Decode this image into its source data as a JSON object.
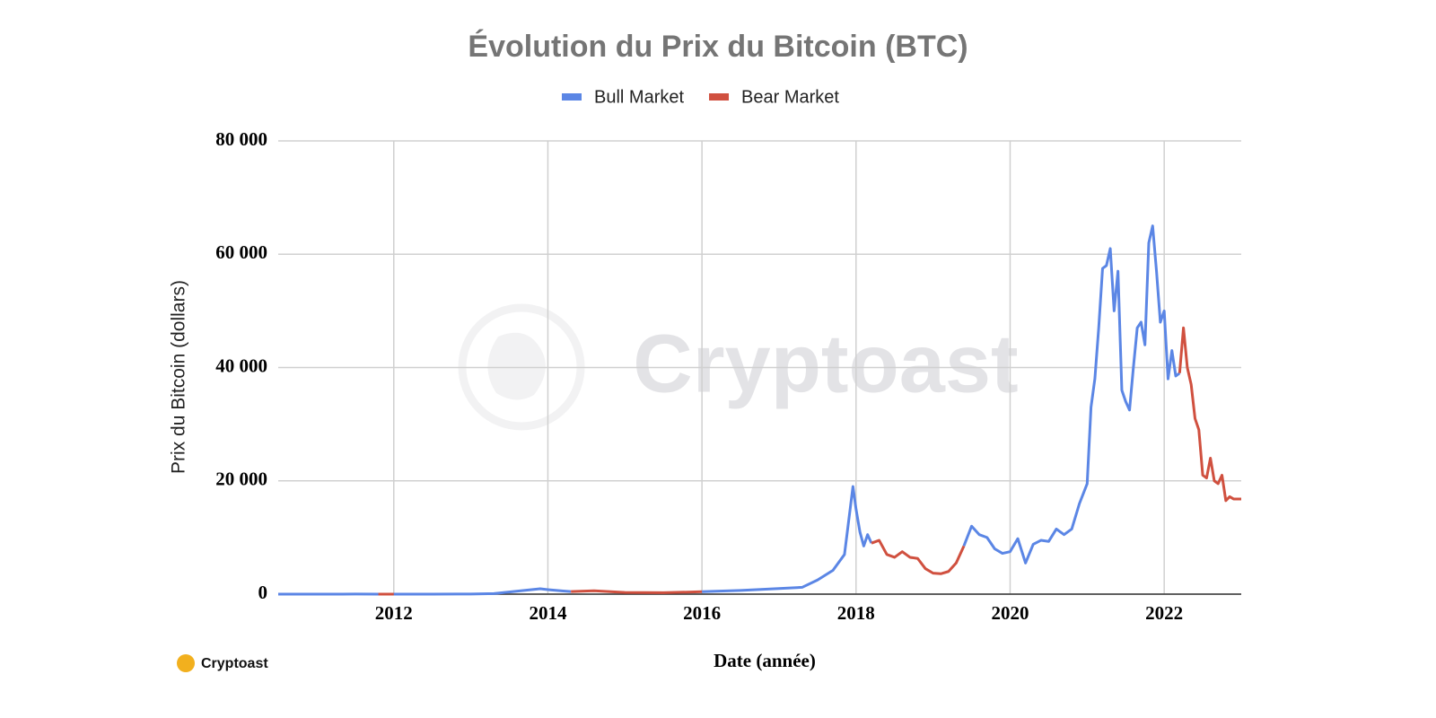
{
  "chart_data": {
    "type": "line",
    "title": "Évolution du Prix du Bitcoin (BTC)",
    "x_label": "Date (année)",
    "y_label": "Prix du Bitcoin (dollars)",
    "watermark": "Cryptoast",
    "source": "Cryptoast",
    "legend": "top",
    "grid": true,
    "xlim": [
      2010.5,
      2023
    ],
    "ylim": [
      0,
      80000
    ],
    "xticks": [
      2012,
      2014,
      2016,
      2018,
      2020,
      2022
    ],
    "yticks": [
      {
        "value": 0,
        "label": "0"
      },
      {
        "value": 20000,
        "label": "20 000"
      },
      {
        "value": 40000,
        "label": "40 000"
      },
      {
        "value": 60000,
        "label": "60 000"
      },
      {
        "value": 80000,
        "label": "80 000"
      }
    ],
    "x": [
      2010.5,
      2011.0,
      2011.5,
      2011.8,
      2012.0,
      2012.5,
      2013.0,
      2013.3,
      2013.9,
      2014.0,
      2014.2,
      2014.3,
      2014.6,
      2015.0,
      2015.5,
      2016.0,
      2016.5,
      2017.0,
      2017.3,
      2017.5,
      2017.7,
      2017.85,
      2017.96,
      2018.0,
      2018.05,
      2018.1,
      2018.15,
      2018.2,
      2018.3,
      2018.4,
      2018.5,
      2018.6,
      2018.7,
      2018.8,
      2018.9,
      2019.0,
      2019.1,
      2019.2,
      2019.3,
      2019.4,
      2019.5,
      2019.6,
      2019.7,
      2019.8,
      2019.9,
      2020.0,
      2020.1,
      2020.2,
      2020.3,
      2020.4,
      2020.5,
      2020.6,
      2020.7,
      2020.8,
      2020.9,
      2021.0,
      2021.05,
      2021.1,
      2021.15,
      2021.2,
      2021.25,
      2021.3,
      2021.35,
      2021.4,
      2021.45,
      2021.5,
      2021.55,
      2021.6,
      2021.65,
      2021.7,
      2021.75,
      2021.8,
      2021.85,
      2021.9,
      2021.95,
      2022.0,
      2022.05,
      2022.1,
      2022.15,
      2022.2,
      2022.25,
      2022.3,
      2022.35,
      2022.4,
      2022.45,
      2022.5,
      2022.55,
      2022.6,
      2022.65,
      2022.7,
      2022.75,
      2022.8,
      2022.85,
      2022.9,
      2023.0
    ],
    "series": [
      {
        "name": "Bull Market",
        "color": "#5b86e5",
        "values": [
          0.1,
          0.3,
          15,
          4,
          5,
          7,
          13,
          100,
          950,
          800,
          550,
          450,
          null,
          null,
          null,
          430,
          650,
          1000,
          1200,
          2500,
          4200,
          7000,
          19000,
          15000,
          11000,
          8500,
          10500,
          9000,
          null,
          null,
          null,
          null,
          null,
          null,
          null,
          null,
          null,
          null,
          null,
          8500,
          12000,
          10500,
          10000,
          8000,
          7200,
          7500,
          9800,
          5500,
          8800,
          9500,
          9300,
          11500,
          10500,
          11500,
          16000,
          19500,
          33000,
          38000,
          47000,
          57500,
          58000,
          61000,
          50000,
          57000,
          36000,
          34000,
          32500,
          40000,
          47000,
          48000,
          44000,
          62000,
          65000,
          57000,
          48000,
          50000,
          38000,
          43000,
          38500,
          39000,
          null,
          null,
          null,
          null,
          null,
          null,
          null,
          null,
          null,
          null,
          null,
          null,
          null,
          null,
          null
        ]
      },
      {
        "name": "Bear Market",
        "color": "#d0503f",
        "values": [
          null,
          null,
          null,
          4,
          5,
          null,
          null,
          null,
          null,
          null,
          null,
          450,
          600,
          300,
          250,
          430,
          null,
          null,
          null,
          null,
          null,
          null,
          null,
          null,
          null,
          null,
          null,
          9000,
          9500,
          7000,
          6500,
          7500,
          6500,
          6300,
          4500,
          3700,
          3600,
          4000,
          5500,
          8500,
          null,
          null,
          null,
          null,
          null,
          null,
          null,
          null,
          null,
          null,
          null,
          null,
          null,
          null,
          null,
          null,
          null,
          null,
          null,
          null,
          null,
          null,
          null,
          null,
          null,
          null,
          null,
          null,
          null,
          null,
          null,
          null,
          null,
          null,
          null,
          null,
          null,
          null,
          null,
          39000,
          47000,
          40000,
          37000,
          31000,
          29000,
          21000,
          20500,
          24000,
          20000,
          19500,
          21000,
          16500,
          17200,
          16800,
          16800
        ]
      }
    ]
  }
}
